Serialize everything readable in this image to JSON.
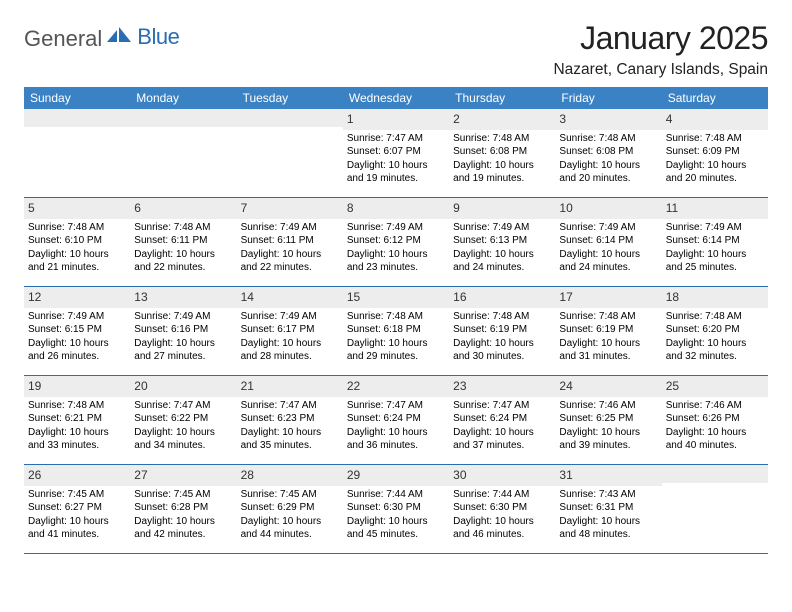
{
  "logo": {
    "text1": "General",
    "text2": "Blue"
  },
  "title": "January 2025",
  "location": "Nazaret, Canary Islands, Spain",
  "colors": {
    "header_bg": "#3b82c4",
    "border": "#2a6db0",
    "daynum_bg": "#ededed",
    "page_bg": "#ffffff"
  },
  "days_of_week": [
    "Sunday",
    "Monday",
    "Tuesday",
    "Wednesday",
    "Thursday",
    "Friday",
    "Saturday"
  ],
  "weeks": [
    [
      null,
      null,
      null,
      {
        "n": "1",
        "sr": "7:47 AM",
        "ss": "6:07 PM",
        "dl": "10 hours and 19 minutes."
      },
      {
        "n": "2",
        "sr": "7:48 AM",
        "ss": "6:08 PM",
        "dl": "10 hours and 19 minutes."
      },
      {
        "n": "3",
        "sr": "7:48 AM",
        "ss": "6:08 PM",
        "dl": "10 hours and 20 minutes."
      },
      {
        "n": "4",
        "sr": "7:48 AM",
        "ss": "6:09 PM",
        "dl": "10 hours and 20 minutes."
      }
    ],
    [
      {
        "n": "5",
        "sr": "7:48 AM",
        "ss": "6:10 PM",
        "dl": "10 hours and 21 minutes."
      },
      {
        "n": "6",
        "sr": "7:48 AM",
        "ss": "6:11 PM",
        "dl": "10 hours and 22 minutes."
      },
      {
        "n": "7",
        "sr": "7:49 AM",
        "ss": "6:11 PM",
        "dl": "10 hours and 22 minutes."
      },
      {
        "n": "8",
        "sr": "7:49 AM",
        "ss": "6:12 PM",
        "dl": "10 hours and 23 minutes."
      },
      {
        "n": "9",
        "sr": "7:49 AM",
        "ss": "6:13 PM",
        "dl": "10 hours and 24 minutes."
      },
      {
        "n": "10",
        "sr": "7:49 AM",
        "ss": "6:14 PM",
        "dl": "10 hours and 24 minutes."
      },
      {
        "n": "11",
        "sr": "7:49 AM",
        "ss": "6:14 PM",
        "dl": "10 hours and 25 minutes."
      }
    ],
    [
      {
        "n": "12",
        "sr": "7:49 AM",
        "ss": "6:15 PM",
        "dl": "10 hours and 26 minutes."
      },
      {
        "n": "13",
        "sr": "7:49 AM",
        "ss": "6:16 PM",
        "dl": "10 hours and 27 minutes."
      },
      {
        "n": "14",
        "sr": "7:49 AM",
        "ss": "6:17 PM",
        "dl": "10 hours and 28 minutes."
      },
      {
        "n": "15",
        "sr": "7:48 AM",
        "ss": "6:18 PM",
        "dl": "10 hours and 29 minutes."
      },
      {
        "n": "16",
        "sr": "7:48 AM",
        "ss": "6:19 PM",
        "dl": "10 hours and 30 minutes."
      },
      {
        "n": "17",
        "sr": "7:48 AM",
        "ss": "6:19 PM",
        "dl": "10 hours and 31 minutes."
      },
      {
        "n": "18",
        "sr": "7:48 AM",
        "ss": "6:20 PM",
        "dl": "10 hours and 32 minutes."
      }
    ],
    [
      {
        "n": "19",
        "sr": "7:48 AM",
        "ss": "6:21 PM",
        "dl": "10 hours and 33 minutes."
      },
      {
        "n": "20",
        "sr": "7:47 AM",
        "ss": "6:22 PM",
        "dl": "10 hours and 34 minutes."
      },
      {
        "n": "21",
        "sr": "7:47 AM",
        "ss": "6:23 PM",
        "dl": "10 hours and 35 minutes."
      },
      {
        "n": "22",
        "sr": "7:47 AM",
        "ss": "6:24 PM",
        "dl": "10 hours and 36 minutes."
      },
      {
        "n": "23",
        "sr": "7:47 AM",
        "ss": "6:24 PM",
        "dl": "10 hours and 37 minutes."
      },
      {
        "n": "24",
        "sr": "7:46 AM",
        "ss": "6:25 PM",
        "dl": "10 hours and 39 minutes."
      },
      {
        "n": "25",
        "sr": "7:46 AM",
        "ss": "6:26 PM",
        "dl": "10 hours and 40 minutes."
      }
    ],
    [
      {
        "n": "26",
        "sr": "7:45 AM",
        "ss": "6:27 PM",
        "dl": "10 hours and 41 minutes."
      },
      {
        "n": "27",
        "sr": "7:45 AM",
        "ss": "6:28 PM",
        "dl": "10 hours and 42 minutes."
      },
      {
        "n": "28",
        "sr": "7:45 AM",
        "ss": "6:29 PM",
        "dl": "10 hours and 44 minutes."
      },
      {
        "n": "29",
        "sr": "7:44 AM",
        "ss": "6:30 PM",
        "dl": "10 hours and 45 minutes."
      },
      {
        "n": "30",
        "sr": "7:44 AM",
        "ss": "6:30 PM",
        "dl": "10 hours and 46 minutes."
      },
      {
        "n": "31",
        "sr": "7:43 AM",
        "ss": "6:31 PM",
        "dl": "10 hours and 48 minutes."
      },
      null
    ]
  ],
  "labels": {
    "sunrise": "Sunrise:",
    "sunset": "Sunset:",
    "daylight": "Daylight:"
  }
}
